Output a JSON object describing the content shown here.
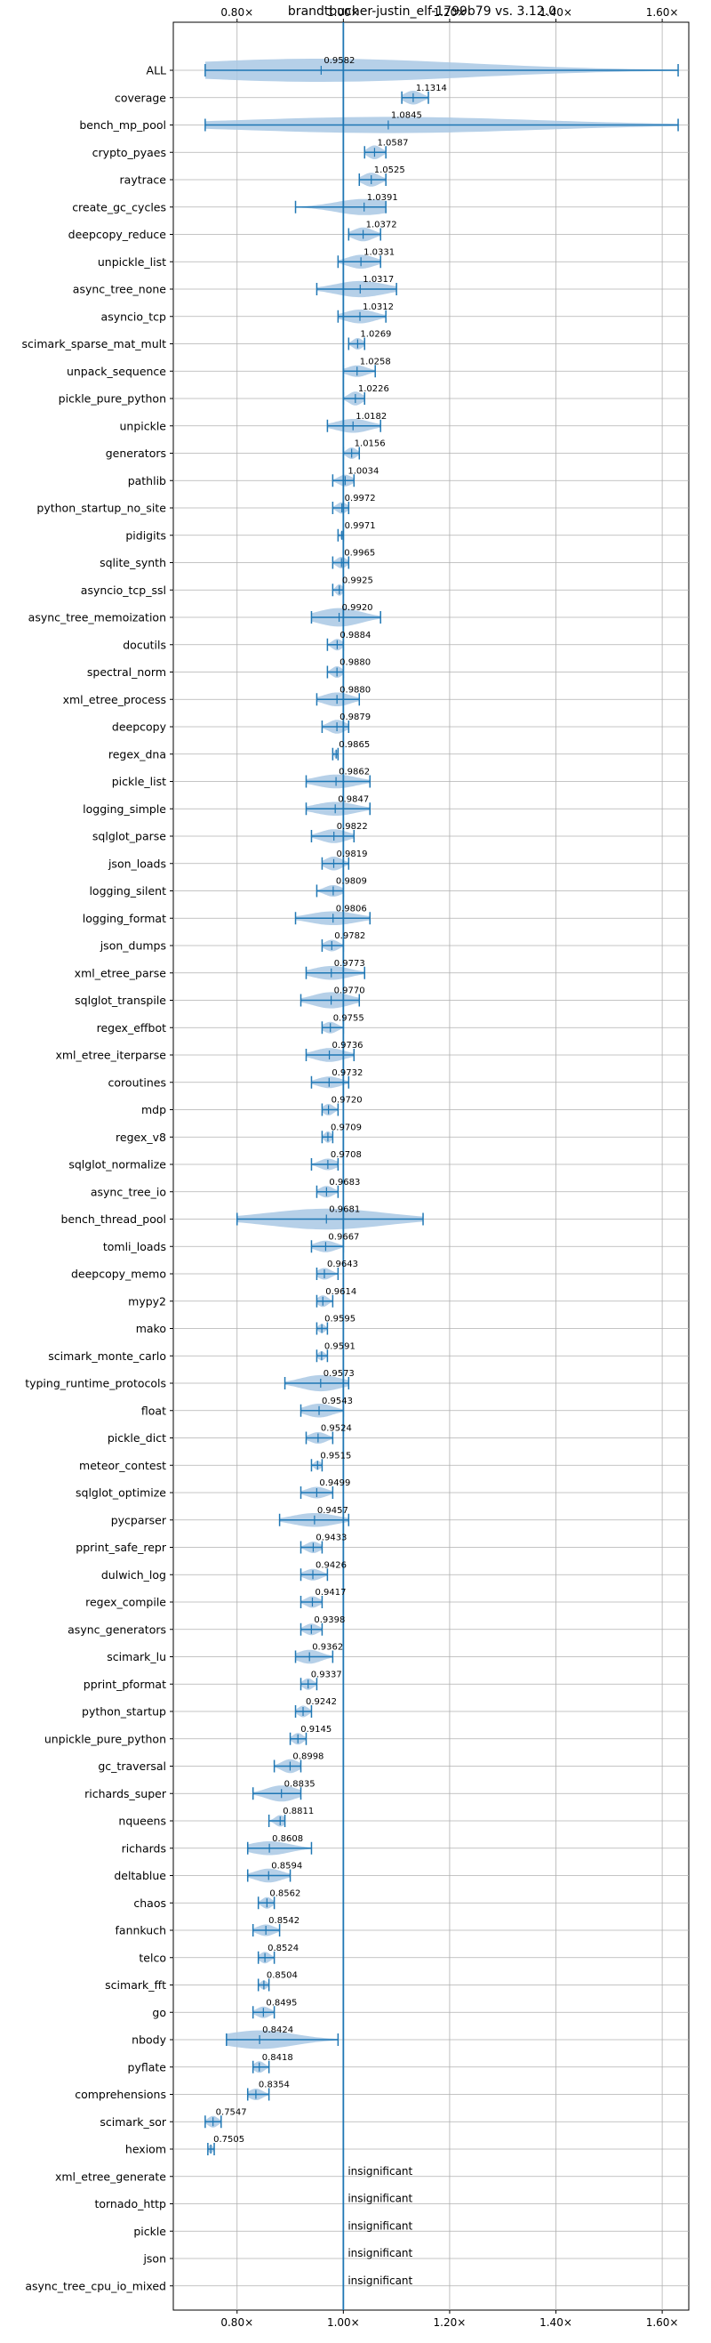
{
  "chart_data": {
    "type": "violin",
    "title": "brandtbucher-justin_elf-1799b79 vs. 3.12.0",
    "x_tick_labels": [
      "0.80×",
      "1.00×",
      "1.20×",
      "1.40×",
      "1.60×"
    ],
    "x_ticks": [
      0.8,
      1.0,
      1.2,
      1.4,
      1.6
    ],
    "xlim": [
      0.68,
      1.65
    ],
    "grid": true,
    "reference_line": 1.0,
    "colors": {
      "violin": "#a9c8e4",
      "line": "#1f77b4",
      "grid": "#b0b0b0",
      "text": "#000000"
    },
    "benchmarks": [
      {
        "name": "ALL",
        "value": 0.9582,
        "label": "0.9582",
        "min": 0.74,
        "max": 1.63,
        "width": 1.0
      },
      {
        "name": "coverage",
        "value": 1.1314,
        "label": "1.1314",
        "min": 1.11,
        "max": 1.16,
        "width": 0.6
      },
      {
        "name": "bench_mp_pool",
        "value": 1.0845,
        "label": "1.0845",
        "min": 0.74,
        "max": 1.63,
        "width": 0.7
      },
      {
        "name": "crypto_pyaes",
        "value": 1.0587,
        "label": "1.0587",
        "min": 1.04,
        "max": 1.08,
        "width": 0.6
      },
      {
        "name": "raytrace",
        "value": 1.0525,
        "label": "1.0525",
        "min": 1.03,
        "max": 1.08,
        "width": 0.6
      },
      {
        "name": "create_gc_cycles",
        "value": 1.0391,
        "label": "1.0391",
        "min": 0.91,
        "max": 1.08,
        "width": 0.7
      },
      {
        "name": "deepcopy_reduce",
        "value": 1.0372,
        "label": "1.0372",
        "min": 1.01,
        "max": 1.07,
        "width": 0.6
      },
      {
        "name": "unpickle_list",
        "value": 1.0331,
        "label": "1.0331",
        "min": 0.99,
        "max": 1.07,
        "width": 0.6
      },
      {
        "name": "async_tree_none",
        "value": 1.0317,
        "label": "1.0317",
        "min": 0.95,
        "max": 1.1,
        "width": 0.7
      },
      {
        "name": "asyncio_tcp",
        "value": 1.0312,
        "label": "1.0312",
        "min": 0.99,
        "max": 1.08,
        "width": 0.6
      },
      {
        "name": "scimark_sparse_mat_mult",
        "value": 1.0269,
        "label": "1.0269",
        "min": 1.01,
        "max": 1.04,
        "width": 0.5
      },
      {
        "name": "unpack_sequence",
        "value": 1.0258,
        "label": "1.0258",
        "min": 1.0,
        "max": 1.06,
        "width": 0.5
      },
      {
        "name": "pickle_pure_python",
        "value": 1.0226,
        "label": "1.0226",
        "min": 1.0,
        "max": 1.04,
        "width": 0.6
      },
      {
        "name": "unpickle",
        "value": 1.0182,
        "label": "1.0182",
        "min": 0.97,
        "max": 1.07,
        "width": 0.6
      },
      {
        "name": "generators",
        "value": 1.0156,
        "label": "1.0156",
        "min": 1.0,
        "max": 1.03,
        "width": 0.5
      },
      {
        "name": "pathlib",
        "value": 1.0034,
        "label": "1.0034",
        "min": 0.98,
        "max": 1.02,
        "width": 0.5
      },
      {
        "name": "python_startup_no_site",
        "value": 0.9972,
        "label": "0.9972",
        "min": 0.98,
        "max": 1.01,
        "width": 0.5
      },
      {
        "name": "pidigits",
        "value": 0.9971,
        "label": "0.9971",
        "min": 0.99,
        "max": 1.0,
        "width": 0.4
      },
      {
        "name": "sqlite_synth",
        "value": 0.9965,
        "label": "0.9965",
        "min": 0.98,
        "max": 1.01,
        "width": 0.5
      },
      {
        "name": "asyncio_tcp_ssl",
        "value": 0.9925,
        "label": "0.9925",
        "min": 0.98,
        "max": 1.0,
        "width": 0.5
      },
      {
        "name": "async_tree_memoization",
        "value": 0.992,
        "label": "0.9920",
        "min": 0.94,
        "max": 1.07,
        "width": 0.8
      },
      {
        "name": "docutils",
        "value": 0.9884,
        "label": "0.9884",
        "min": 0.97,
        "max": 1.0,
        "width": 0.5
      },
      {
        "name": "spectral_norm",
        "value": 0.988,
        "label": "0.9880",
        "min": 0.97,
        "max": 1.0,
        "width": 0.5
      },
      {
        "name": "xml_etree_process",
        "value": 0.988,
        "label": "0.9880",
        "min": 0.95,
        "max": 1.03,
        "width": 0.6
      },
      {
        "name": "deepcopy",
        "value": 0.9879,
        "label": "0.9879",
        "min": 0.96,
        "max": 1.01,
        "width": 0.6
      },
      {
        "name": "regex_dna",
        "value": 0.9865,
        "label": "0.9865",
        "min": 0.98,
        "max": 0.99,
        "width": 0.4
      },
      {
        "name": "pickle_list",
        "value": 0.9862,
        "label": "0.9862",
        "min": 0.93,
        "max": 1.05,
        "width": 0.6
      },
      {
        "name": "logging_simple",
        "value": 0.9847,
        "label": "0.9847",
        "min": 0.93,
        "max": 1.05,
        "width": 0.6
      },
      {
        "name": "sqlglot_parse",
        "value": 0.9822,
        "label": "0.9822",
        "min": 0.94,
        "max": 1.02,
        "width": 0.6
      },
      {
        "name": "json_loads",
        "value": 0.9819,
        "label": "0.9819",
        "min": 0.96,
        "max": 1.01,
        "width": 0.6
      },
      {
        "name": "logging_silent",
        "value": 0.9809,
        "label": "0.9809",
        "min": 0.95,
        "max": 1.0,
        "width": 0.5
      },
      {
        "name": "logging_format",
        "value": 0.9806,
        "label": "0.9806",
        "min": 0.91,
        "max": 1.05,
        "width": 0.6
      },
      {
        "name": "json_dumps",
        "value": 0.9782,
        "label": "0.9782",
        "min": 0.96,
        "max": 1.0,
        "width": 0.5
      },
      {
        "name": "xml_etree_parse",
        "value": 0.9773,
        "label": "0.9773",
        "min": 0.93,
        "max": 1.04,
        "width": 0.6
      },
      {
        "name": "sqlglot_transpile",
        "value": 0.977,
        "label": "0.9770",
        "min": 0.92,
        "max": 1.03,
        "width": 0.7
      },
      {
        "name": "regex_effbot",
        "value": 0.9755,
        "label": "0.9755",
        "min": 0.96,
        "max": 1.0,
        "width": 0.5
      },
      {
        "name": "xml_etree_iterparse",
        "value": 0.9736,
        "label": "0.9736",
        "min": 0.93,
        "max": 1.02,
        "width": 0.6
      },
      {
        "name": "coroutines",
        "value": 0.9732,
        "label": "0.9732",
        "min": 0.94,
        "max": 1.01,
        "width": 0.5
      },
      {
        "name": "mdp",
        "value": 0.972,
        "label": "0.9720",
        "min": 0.96,
        "max": 0.99,
        "width": 0.5
      },
      {
        "name": "regex_v8",
        "value": 0.9709,
        "label": "0.9709",
        "min": 0.96,
        "max": 0.98,
        "width": 0.5
      },
      {
        "name": "sqlglot_normalize",
        "value": 0.9708,
        "label": "0.9708",
        "min": 0.94,
        "max": 0.99,
        "width": 0.5
      },
      {
        "name": "async_tree_io",
        "value": 0.9683,
        "label": "0.9683",
        "min": 0.95,
        "max": 0.99,
        "width": 0.5
      },
      {
        "name": "bench_thread_pool",
        "value": 0.9681,
        "label": "0.9681",
        "min": 0.8,
        "max": 1.15,
        "width": 0.9
      },
      {
        "name": "tomli_loads",
        "value": 0.9667,
        "label": "0.9667",
        "min": 0.94,
        "max": 1.0,
        "width": 0.5
      },
      {
        "name": "deepcopy_memo",
        "value": 0.9643,
        "label": "0.9643",
        "min": 0.95,
        "max": 0.99,
        "width": 0.5
      },
      {
        "name": "mypy2",
        "value": 0.9614,
        "label": "0.9614",
        "min": 0.95,
        "max": 0.98,
        "width": 0.5
      },
      {
        "name": "mako",
        "value": 0.9595,
        "label": "0.9595",
        "min": 0.95,
        "max": 0.97,
        "width": 0.4
      },
      {
        "name": "scimark_monte_carlo",
        "value": 0.9591,
        "label": "0.9591",
        "min": 0.95,
        "max": 0.97,
        "width": 0.4
      },
      {
        "name": "typing_runtime_protocols",
        "value": 0.9573,
        "label": "0.9573",
        "min": 0.89,
        "max": 1.01,
        "width": 0.7
      },
      {
        "name": "float",
        "value": 0.9543,
        "label": "0.9543",
        "min": 0.92,
        "max": 1.0,
        "width": 0.6
      },
      {
        "name": "pickle_dict",
        "value": 0.9524,
        "label": "0.9524",
        "min": 0.93,
        "max": 0.98,
        "width": 0.5
      },
      {
        "name": "meteor_contest",
        "value": 0.9515,
        "label": "0.9515",
        "min": 0.94,
        "max": 0.96,
        "width": 0.4
      },
      {
        "name": "sqlglot_optimize",
        "value": 0.9499,
        "label": "0.9499",
        "min": 0.92,
        "max": 0.98,
        "width": 0.5
      },
      {
        "name": "pycparser",
        "value": 0.9457,
        "label": "0.9457",
        "min": 0.88,
        "max": 1.01,
        "width": 0.6
      },
      {
        "name": "pprint_safe_repr",
        "value": 0.9433,
        "label": "0.9433",
        "min": 0.92,
        "max": 0.96,
        "width": 0.5
      },
      {
        "name": "dulwich_log",
        "value": 0.9426,
        "label": "0.9426",
        "min": 0.92,
        "max": 0.97,
        "width": 0.5
      },
      {
        "name": "regex_compile",
        "value": 0.9417,
        "label": "0.9417",
        "min": 0.92,
        "max": 0.96,
        "width": 0.5
      },
      {
        "name": "async_generators",
        "value": 0.9398,
        "label": "0.9398",
        "min": 0.92,
        "max": 0.96,
        "width": 0.5
      },
      {
        "name": "scimark_lu",
        "value": 0.9362,
        "label": "0.9362",
        "min": 0.91,
        "max": 0.98,
        "width": 0.6
      },
      {
        "name": "pprint_pformat",
        "value": 0.9337,
        "label": "0.9337",
        "min": 0.92,
        "max": 0.95,
        "width": 0.5
      },
      {
        "name": "python_startup",
        "value": 0.9242,
        "label": "0.9242",
        "min": 0.91,
        "max": 0.94,
        "width": 0.5
      },
      {
        "name": "unpickle_pure_python",
        "value": 0.9145,
        "label": "0.9145",
        "min": 0.9,
        "max": 0.93,
        "width": 0.5
      },
      {
        "name": "gc_traversal",
        "value": 0.8998,
        "label": "0.8998",
        "min": 0.87,
        "max": 0.92,
        "width": 0.6
      },
      {
        "name": "richards_super",
        "value": 0.8835,
        "label": "0.8835",
        "min": 0.83,
        "max": 0.92,
        "width": 0.7
      },
      {
        "name": "nqueens",
        "value": 0.8811,
        "label": "0.8811",
        "min": 0.86,
        "max": 0.89,
        "width": 0.5
      },
      {
        "name": "richards",
        "value": 0.8608,
        "label": "0.8608",
        "min": 0.82,
        "max": 0.94,
        "width": 0.6
      },
      {
        "name": "deltablue",
        "value": 0.8594,
        "label": "0.8594",
        "min": 0.82,
        "max": 0.9,
        "width": 0.6
      },
      {
        "name": "chaos",
        "value": 0.8562,
        "label": "0.8562",
        "min": 0.84,
        "max": 0.87,
        "width": 0.5
      },
      {
        "name": "fannkuch",
        "value": 0.8542,
        "label": "0.8542",
        "min": 0.83,
        "max": 0.88,
        "width": 0.5
      },
      {
        "name": "telco",
        "value": 0.8524,
        "label": "0.8524",
        "min": 0.84,
        "max": 0.87,
        "width": 0.5
      },
      {
        "name": "scimark_fft",
        "value": 0.8504,
        "label": "0.8504",
        "min": 0.84,
        "max": 0.86,
        "width": 0.4
      },
      {
        "name": "go",
        "value": 0.8495,
        "label": "0.8495",
        "min": 0.83,
        "max": 0.87,
        "width": 0.5
      },
      {
        "name": "nbody",
        "value": 0.8424,
        "label": "0.8424",
        "min": 0.78,
        "max": 0.99,
        "width": 0.8
      },
      {
        "name": "pyflate",
        "value": 0.8418,
        "label": "0.8418",
        "min": 0.83,
        "max": 0.86,
        "width": 0.5
      },
      {
        "name": "comprehensions",
        "value": 0.8354,
        "label": "0.8354",
        "min": 0.82,
        "max": 0.86,
        "width": 0.5
      },
      {
        "name": "scimark_sor",
        "value": 0.7547,
        "label": "0.7547",
        "min": 0.74,
        "max": 0.77,
        "width": 0.5
      },
      {
        "name": "hexiom",
        "value": 0.7505,
        "label": "0.7505",
        "min": 0.745,
        "max": 0.757,
        "width": 0.4
      },
      {
        "name": "xml_etree_generate",
        "value": null,
        "label": "insignificant"
      },
      {
        "name": "tornado_http",
        "value": null,
        "label": "insignificant"
      },
      {
        "name": "pickle",
        "value": null,
        "label": "insignificant"
      },
      {
        "name": "json",
        "value": null,
        "label": "insignificant"
      },
      {
        "name": "async_tree_cpu_io_mixed",
        "value": null,
        "label": "insignificant"
      }
    ]
  }
}
